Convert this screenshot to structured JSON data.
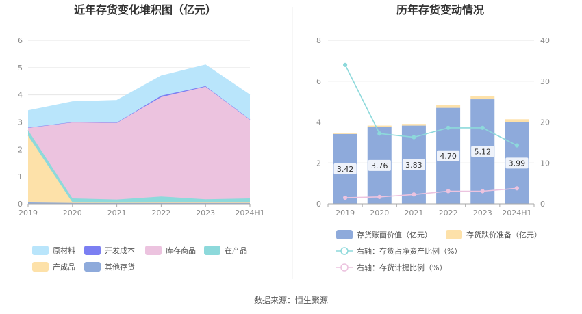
{
  "source_text": "数据来源：恒生聚源",
  "chart_data": [
    {
      "type": "area",
      "title": "近年存货变化堆积图（亿元）",
      "categories": [
        "2019",
        "2020",
        "2021",
        "2022",
        "2023",
        "2024H1"
      ],
      "ylim": [
        0,
        6
      ],
      "yticks": [
        "0",
        "1",
        "2",
        "3",
        "4",
        "5",
        "6"
      ],
      "stacked": true,
      "series": [
        {
          "name": "其他存货",
          "color": "#8eaadb",
          "values": [
            0.05,
            0.03,
            0.03,
            0.03,
            0.03,
            0.03
          ]
        },
        {
          "name": "产成品",
          "color": "#fde1a9",
          "values": [
            2.45,
            0.02,
            0.01,
            0.02,
            0.02,
            0.02
          ]
        },
        {
          "name": "在产品",
          "color": "#8dd9db",
          "values": [
            0.2,
            0.15,
            0.12,
            0.22,
            0.12,
            0.15
          ]
        },
        {
          "name": "库存商品",
          "color": "#ecc3df",
          "values": [
            0.1,
            2.8,
            2.82,
            3.65,
            4.13,
            2.9
          ]
        },
        {
          "name": "开发成本",
          "color": "#7b7ff2",
          "values": [
            0,
            0,
            0,
            0.05,
            0.02,
            0
          ]
        },
        {
          "name": "原材料",
          "color": "#b9e5fb",
          "values": [
            0.62,
            0.75,
            0.82,
            0.73,
            0.78,
            0.9
          ]
        }
      ],
      "legend": {
        "position": "bottom",
        "rows": [
          [
            "原材料",
            "开发成本",
            "库存商品",
            "在产品"
          ],
          [
            "产成品",
            "其他存货"
          ]
        ]
      }
    },
    {
      "type": "bar",
      "title": "历年存货变动情况",
      "categories": [
        "2019",
        "2020",
        "2021",
        "2022",
        "2023",
        "2024H1"
      ],
      "ylim": [
        0,
        8
      ],
      "yticks": [
        "0",
        "2",
        "4",
        "6",
        "8"
      ],
      "y2lim": [
        0,
        40
      ],
      "y2ticks": [
        "0",
        "10",
        "20",
        "30",
        "40"
      ],
      "series": [
        {
          "name": "存货账面价值（亿元）",
          "color": "#8eaadb",
          "axis": "left",
          "kind": "bar",
          "values": [
            3.42,
            3.76,
            3.83,
            4.7,
            5.12,
            3.99
          ],
          "labels": [
            "3.42",
            "3.76",
            "3.83",
            "4.70",
            "5.12",
            "3.99"
          ]
        },
        {
          "name": "存货跌价准备（亿元）",
          "color": "#fde1a9",
          "axis": "left",
          "kind": "bar",
          "values": [
            0.06,
            0.07,
            0.08,
            0.15,
            0.16,
            0.15
          ]
        },
        {
          "name": "右轴：存货占净资产比例（%）",
          "color": "#8dd9db",
          "axis": "right",
          "kind": "line",
          "values": [
            34,
            17.2,
            16.3,
            18.6,
            18.6,
            14.3
          ]
        },
        {
          "name": "右轴：存货计提比例（%）",
          "color": "#ecc3df",
          "axis": "right",
          "kind": "line",
          "values": [
            1.5,
            1.7,
            2.3,
            3.1,
            3.1,
            3.8
          ]
        }
      ],
      "legend": {
        "position": "bottom"
      }
    }
  ]
}
